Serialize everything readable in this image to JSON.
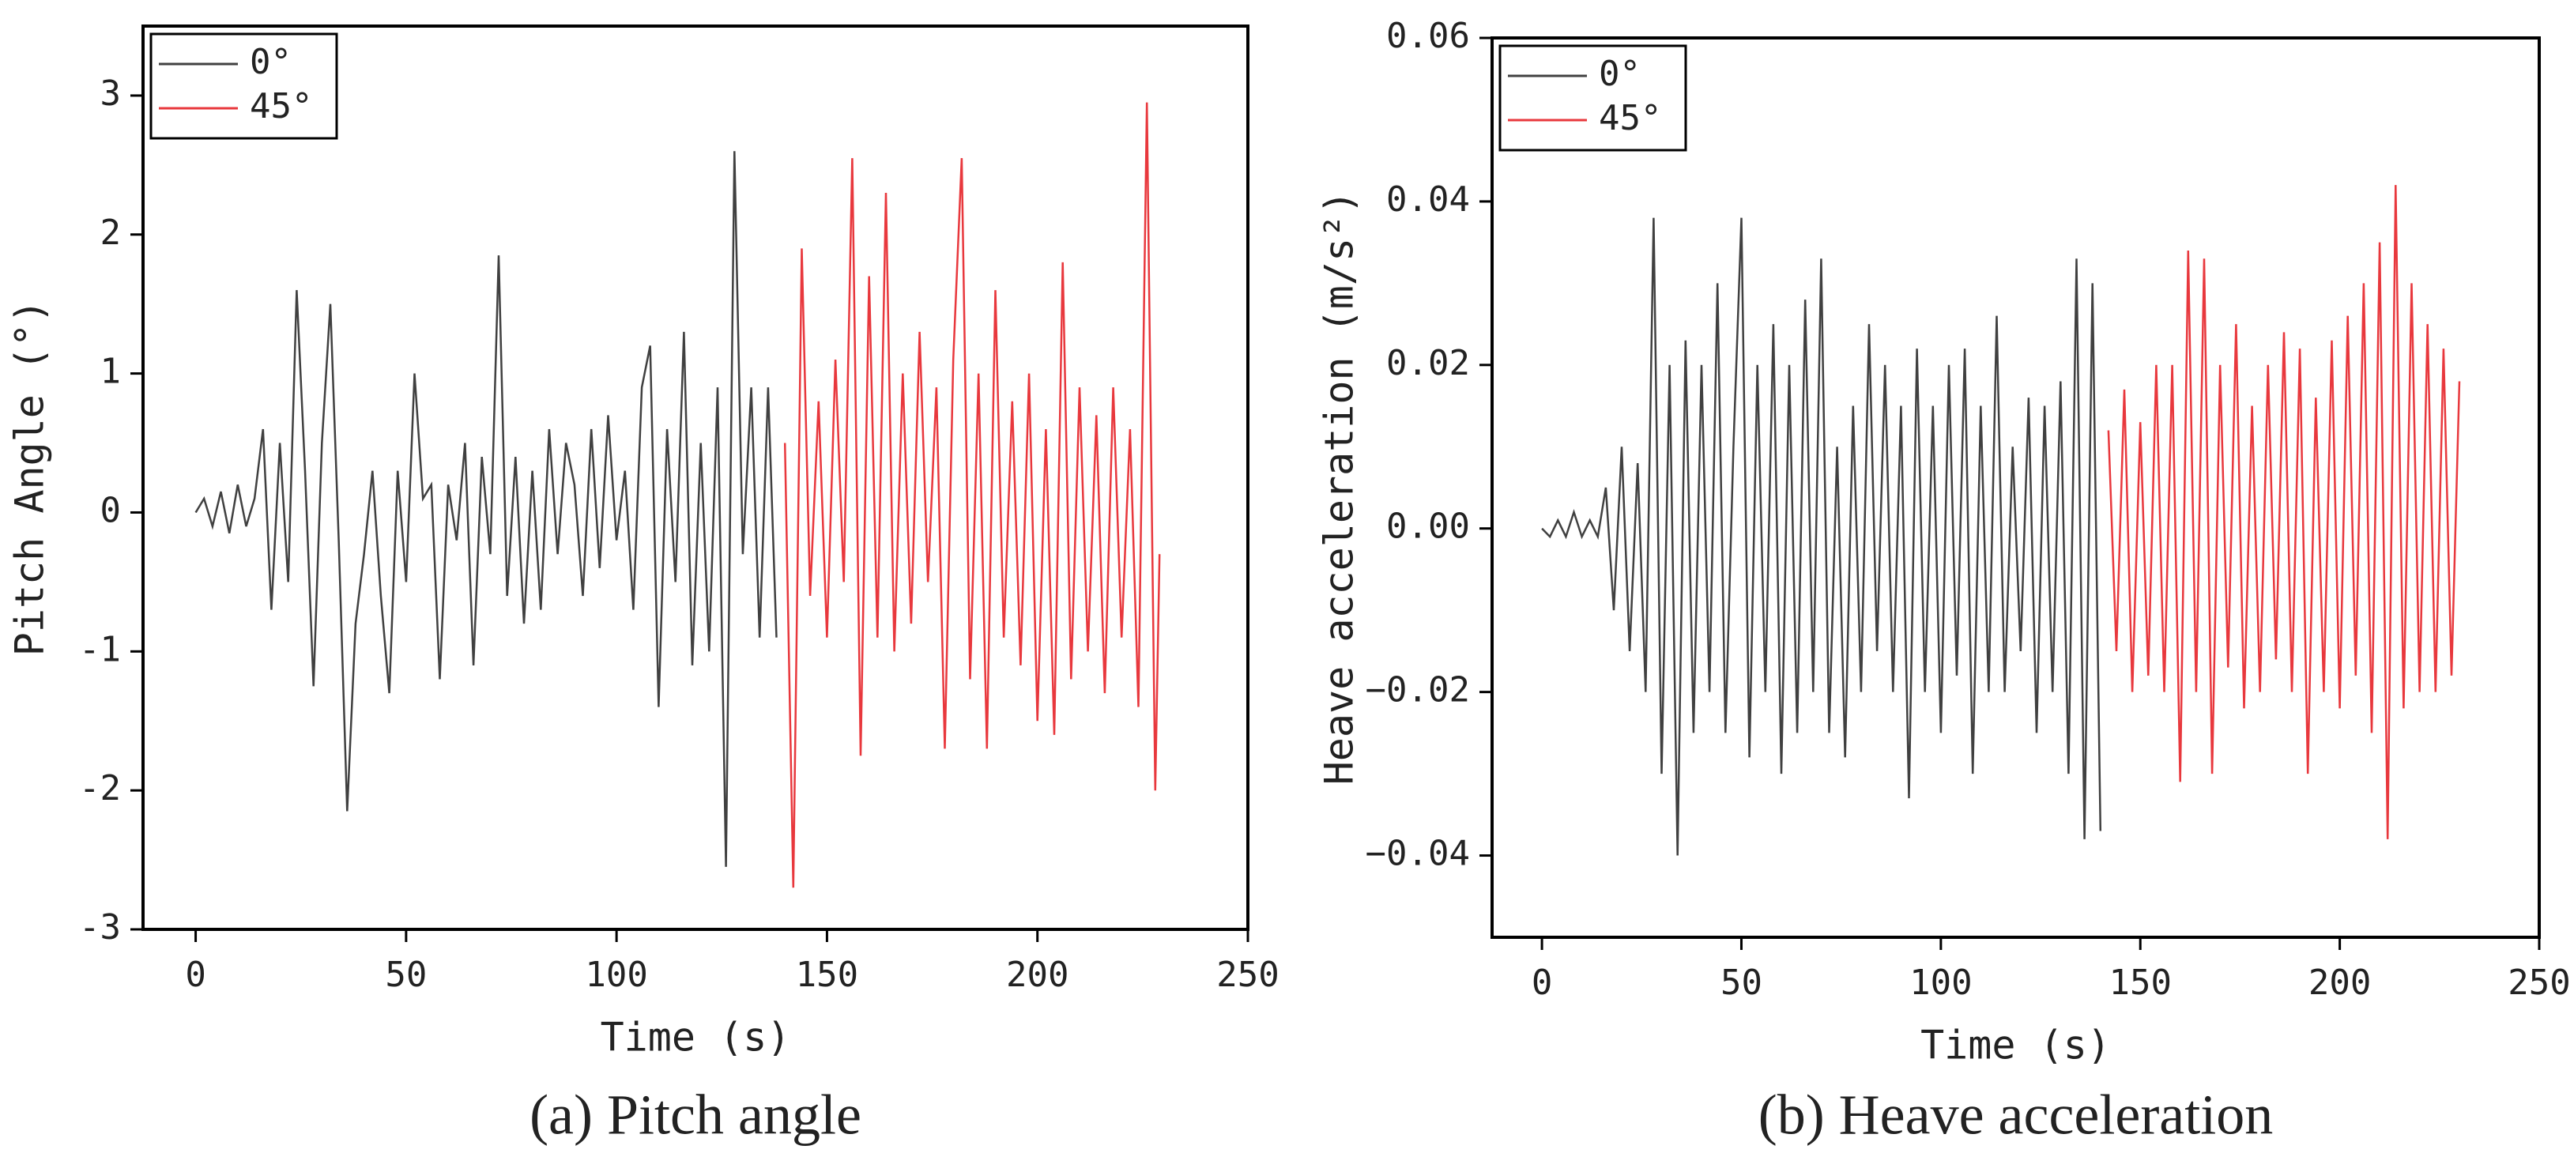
{
  "chart_data": [
    {
      "type": "line",
      "caption": "(a) Pitch angle",
      "xlabel": "Time (s)",
      "ylabel": "Pitch Angle (°)",
      "xlim": [
        -12.5,
        250
      ],
      "xticks": [
        0,
        50,
        100,
        150,
        200,
        250
      ],
      "ylim": [
        -3,
        3.5
      ],
      "yticks": [
        -3,
        -2,
        -1,
        0,
        1,
        2,
        3
      ],
      "legend": "upper left",
      "series": [
        {
          "name": "0°",
          "color": "#404040",
          "x": [
            0,
            2,
            4,
            6,
            8,
            10,
            12,
            14,
            16,
            18,
            20,
            22,
            24,
            26,
            28,
            30,
            32,
            34,
            36,
            38,
            40,
            42,
            44,
            46,
            48,
            50,
            52,
            54,
            56,
            58,
            60,
            62,
            64,
            66,
            68,
            70,
            72,
            74,
            76,
            78,
            80,
            82,
            84,
            86,
            88,
            90,
            92,
            94,
            96,
            98,
            100,
            102,
            104,
            106,
            108,
            110,
            112,
            114,
            116,
            118,
            120,
            122,
            124,
            126,
            128,
            130,
            132,
            134,
            136,
            138
          ],
          "values": [
            0,
            0.1,
            -0.1,
            0.15,
            -0.15,
            0.2,
            -0.1,
            0.1,
            0.6,
            -0.7,
            0.5,
            -0.5,
            1.6,
            0.3,
            -1.25,
            0.5,
            1.5,
            -0.2,
            -2.15,
            -0.8,
            -0.3,
            0.3,
            -0.6,
            -1.3,
            0.3,
            -0.5,
            1.0,
            0.1,
            0.2,
            -1.2,
            0.2,
            -0.2,
            0.5,
            -1.1,
            0.4,
            -0.3,
            1.85,
            -0.6,
            0.4,
            -0.8,
            0.3,
            -0.7,
            0.6,
            -0.3,
            0.5,
            0.2,
            -0.6,
            0.6,
            -0.4,
            0.7,
            -0.2,
            0.3,
            -0.7,
            0.9,
            1.2,
            -1.4,
            0.6,
            -0.5,
            1.3,
            -1.1,
            0.5,
            -1.0,
            0.9,
            -2.55,
            2.6,
            -0.3,
            0.9,
            -0.9,
            0.9,
            -0.9
          ]
        },
        {
          "name": "45°",
          "color": "#e8383d",
          "x": [
            140,
            142,
            144,
            146,
            148,
            150,
            152,
            154,
            156,
            158,
            160,
            162,
            164,
            166,
            168,
            170,
            172,
            174,
            176,
            178,
            180,
            182,
            184,
            186,
            188,
            190,
            192,
            194,
            196,
            198,
            200,
            202,
            204,
            206,
            208,
            210,
            212,
            214,
            216,
            218,
            220,
            222,
            224,
            226,
            228,
            229
          ],
          "values": [
            0.5,
            -2.7,
            1.9,
            -0.6,
            0.8,
            -0.9,
            1.1,
            -0.5,
            2.55,
            -1.75,
            1.7,
            -0.9,
            2.3,
            -1.0,
            1.0,
            -0.8,
            1.3,
            -0.5,
            0.9,
            -1.7,
            1.1,
            2.55,
            -1.2,
            1.0,
            -1.7,
            1.6,
            -0.9,
            0.8,
            -1.1,
            1.0,
            -1.5,
            0.6,
            -1.6,
            1.8,
            -1.2,
            0.9,
            -1.0,
            0.7,
            -1.3,
            0.9,
            -0.9,
            0.6,
            -1.4,
            2.95,
            -2.0,
            -0.3
          ]
        }
      ]
    },
    {
      "type": "line",
      "caption": "(b) Heave acceleration",
      "xlabel": "Time (s)",
      "ylabel": "Heave acceleration (m/s²)",
      "xlim": [
        -12.5,
        250
      ],
      "xticks": [
        0,
        50,
        100,
        150,
        200,
        250
      ],
      "ylim": [
        -0.05,
        0.06
      ],
      "yticks": [
        {
          "value": -0.04,
          "label": "−0.04"
        },
        {
          "value": -0.02,
          "label": "−0.02"
        },
        {
          "value": 0,
          "label": "0.00"
        },
        0.02,
        0.04,
        0.06
      ],
      "legend": "upper left",
      "series": [
        {
          "name": "0°",
          "color": "#404040",
          "x": [
            0,
            2,
            4,
            6,
            8,
            10,
            12,
            14,
            16,
            18,
            20,
            22,
            24,
            26,
            28,
            30,
            32,
            34,
            36,
            38,
            40,
            42,
            44,
            46,
            48,
            50,
            52,
            54,
            56,
            58,
            60,
            62,
            64,
            66,
            68,
            70,
            72,
            74,
            76,
            78,
            80,
            82,
            84,
            86,
            88,
            90,
            92,
            94,
            96,
            98,
            100,
            102,
            104,
            106,
            108,
            110,
            112,
            114,
            116,
            118,
            120,
            122,
            124,
            126,
            128,
            130,
            132,
            134,
            136,
            138,
            140
          ],
          "values": [
            0,
            -0.001,
            0.001,
            -0.001,
            0.002,
            -0.001,
            0.001,
            -0.001,
            0.005,
            -0.01,
            0.01,
            -0.015,
            0.008,
            -0.02,
            0.038,
            -0.03,
            0.02,
            -0.04,
            0.023,
            -0.025,
            0.02,
            -0.02,
            0.03,
            -0.025,
            0.01,
            0.038,
            -0.028,
            0.02,
            -0.02,
            0.025,
            -0.03,
            0.02,
            -0.025,
            0.028,
            -0.02,
            0.033,
            -0.025,
            0.01,
            -0.028,
            0.015,
            -0.02,
            0.025,
            -0.015,
            0.02,
            -0.02,
            0.015,
            -0.033,
            0.022,
            -0.02,
            0.015,
            -0.025,
            0.02,
            -0.018,
            0.022,
            -0.03,
            0.015,
            -0.02,
            0.026,
            -0.02,
            0.01,
            -0.015,
            0.016,
            -0.025,
            0.015,
            -0.02,
            0.018,
            -0.03,
            0.033,
            -0.038,
            0.03,
            -0.037
          ]
        },
        {
          "name": "45°",
          "color": "#e8383d",
          "x": [
            142,
            144,
            146,
            148,
            150,
            152,
            154,
            156,
            158,
            160,
            162,
            164,
            166,
            168,
            170,
            172,
            174,
            176,
            178,
            180,
            182,
            184,
            186,
            188,
            190,
            192,
            194,
            196,
            198,
            200,
            202,
            204,
            206,
            208,
            210,
            212,
            214,
            216,
            218,
            220,
            222,
            224,
            226,
            228,
            230
          ],
          "values": [
            0.012,
            -0.015,
            0.017,
            -0.02,
            0.013,
            -0.018,
            0.02,
            -0.02,
            0.02,
            -0.031,
            0.034,
            -0.02,
            0.033,
            -0.03,
            0.02,
            -0.017,
            0.025,
            -0.022,
            0.015,
            -0.02,
            0.02,
            -0.016,
            0.024,
            -0.02,
            0.022,
            -0.03,
            0.016,
            -0.02,
            0.023,
            -0.022,
            0.026,
            -0.018,
            0.03,
            -0.025,
            0.035,
            -0.038,
            0.042,
            -0.022,
            0.03,
            -0.02,
            0.025,
            -0.02,
            0.022,
            -0.018,
            0.018
          ]
        }
      ]
    }
  ]
}
